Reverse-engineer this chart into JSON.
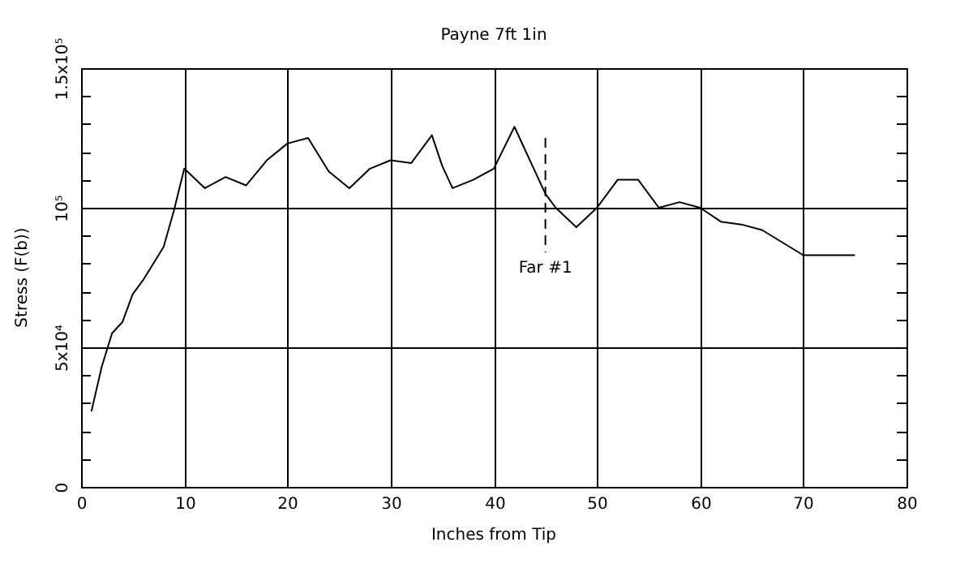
{
  "chart_data": {
    "type": "line",
    "title": "Payne 7ft 1in",
    "xlabel": "Inches from Tip",
    "ylabel": "Stress (F(b))",
    "xlim": [
      0,
      80
    ],
    "xticks": [
      0,
      10,
      20,
      30,
      40,
      50,
      60,
      70,
      80
    ],
    "ylim": [
      0,
      150000
    ],
    "yticks": [
      0,
      {
        "value": 10000,
        "label": null
      },
      {
        "value": 20000,
        "label": null
      },
      {
        "value": 30000,
        "label": null
      },
      {
        "value": 40000,
        "label": null
      },
      {
        "value": 50000,
        "label": "5x10⁴"
      },
      {
        "value": 60000,
        "label": null
      },
      {
        "value": 70000,
        "label": null
      },
      {
        "value": 80000,
        "label": null
      },
      {
        "value": 90000,
        "label": null
      },
      {
        "value": 100000,
        "label": "10⁵"
      },
      {
        "value": 110000,
        "label": null
      },
      {
        "value": 120000,
        "label": null
      },
      {
        "value": 130000,
        "label": null
      },
      {
        "value": 140000,
        "label": null
      },
      {
        "value": 150000,
        "label": "1.5x10⁵"
      }
    ],
    "grid": true,
    "legend": false,
    "marker": "none",
    "series": [
      {
        "color": "#000000",
        "line_style": "solid",
        "x": [
          1,
          2,
          3,
          4,
          5,
          6,
          8,
          9,
          10,
          12,
          14,
          16,
          18,
          20,
          22,
          24,
          26,
          28,
          30,
          32,
          34,
          35,
          36,
          38,
          40,
          42,
          45,
          46,
          48,
          50,
          52,
          54,
          56,
          58,
          60,
          62,
          64,
          66,
          70,
          75
        ],
        "values": [
          27000,
          43000,
          55000,
          59000,
          69000,
          74000,
          86000,
          99000,
          114000,
          107000,
          111000,
          108000,
          117000,
          123000,
          125000,
          113000,
          107000,
          114000,
          117000,
          116000,
          126000,
          115000,
          107000,
          110000,
          114000,
          129000,
          105000,
          100000,
          93000,
          100000,
          110000,
          110000,
          100000,
          102000,
          100000,
          95000,
          94000,
          92000,
          83000,
          83000
        ]
      },
      {
        "color": "#000000",
        "line_style": "dashed",
        "x": [
          45,
          45
        ],
        "values": [
          125000,
          84000
        ]
      }
    ],
    "annotations": [
      {
        "text": "Far #1",
        "x": 45,
        "y": 84000
      }
    ]
  }
}
